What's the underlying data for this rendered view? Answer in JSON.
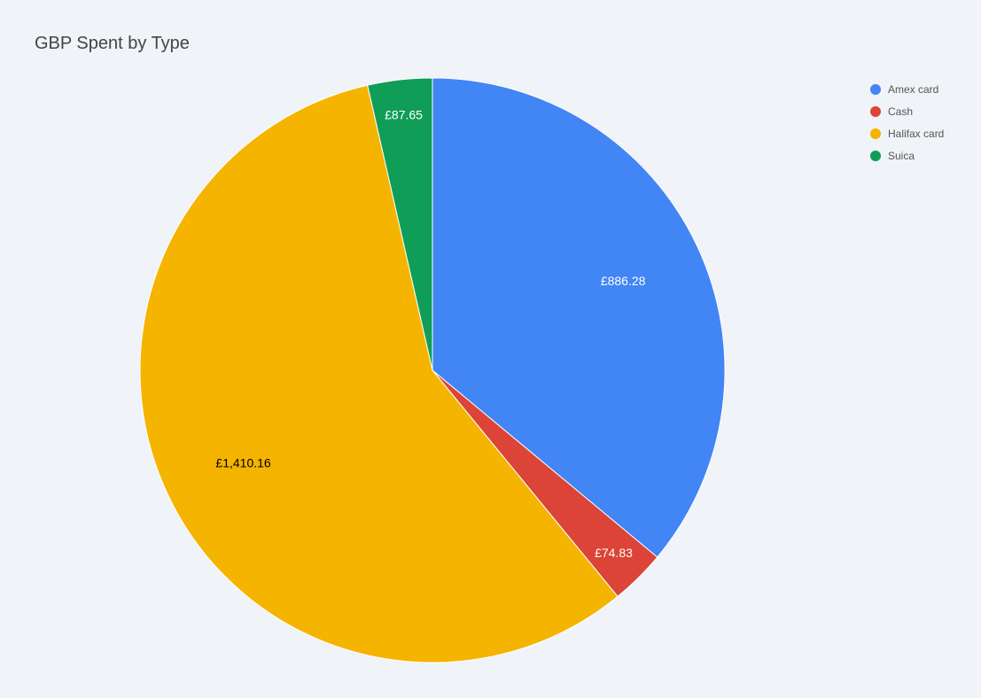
{
  "chart_data": {
    "type": "pie",
    "title": "GBP Spent by Type",
    "categories": [
      "Amex card",
      "Cash",
      "Halifax card",
      "Suica"
    ],
    "values": [
      886.28,
      74.83,
      1410.16,
      87.65
    ],
    "value_labels": [
      "£886.28",
      "£74.83",
      "£1,410.16",
      "£87.65"
    ],
    "colors": [
      "#4285f4",
      "#db4437",
      "#f4b400",
      "#0f9d58"
    ],
    "label_colors": [
      "#ffffff",
      "#ffffff",
      "#000000",
      "#ffffff"
    ],
    "start_angle_deg": 0,
    "direction": "clockwise",
    "legend_position": "right"
  }
}
